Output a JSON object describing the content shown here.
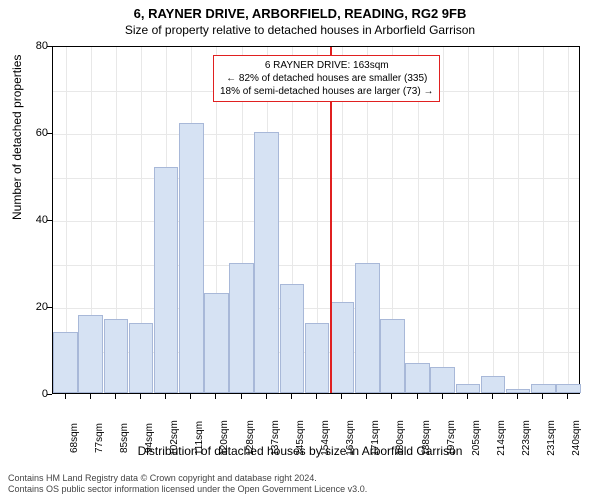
{
  "title_main": "6, RAYNER DRIVE, ARBORFIELD, READING, RG2 9FB",
  "title_sub": "Size of property relative to detached houses in Arborfield Garrison",
  "ylabel": "Number of detached properties",
  "xlabel": "Distribution of detached houses by size in Arborfield Garrison",
  "chart": {
    "ylim": [
      0,
      80
    ],
    "ytick_step": 10,
    "ymajor": [
      0,
      20,
      40,
      60,
      80
    ],
    "bar_color": "#d6e2f3",
    "bar_border": "#a8b8d8",
    "grid_color": "#e8e8e8",
    "marker_color": "#e02020",
    "categories": [
      "68sqm",
      "77sqm",
      "85sqm",
      "94sqm",
      "102sqm",
      "111sqm",
      "120sqm",
      "128sqm",
      "137sqm",
      "145sqm",
      "154sqm",
      "163sqm",
      "171sqm",
      "180sqm",
      "188sqm",
      "197sqm",
      "205sqm",
      "214sqm",
      "223sqm",
      "231sqm",
      "240sqm"
    ],
    "values": [
      14,
      18,
      17,
      16,
      52,
      62,
      23,
      30,
      60,
      25,
      16,
      21,
      30,
      17,
      7,
      6,
      2,
      4,
      1,
      2,
      2
    ],
    "marker_index": 11
  },
  "info": {
    "line1": "6 RAYNER DRIVE: 163sqm",
    "line2": "← 82% of detached houses are smaller (335)",
    "line3": "18% of semi-detached houses are larger (73) →"
  },
  "footer1": "Contains HM Land Registry data © Crown copyright and database right 2024.",
  "footer2": "Contains OS public sector information licensed under the Open Government Licence v3.0."
}
